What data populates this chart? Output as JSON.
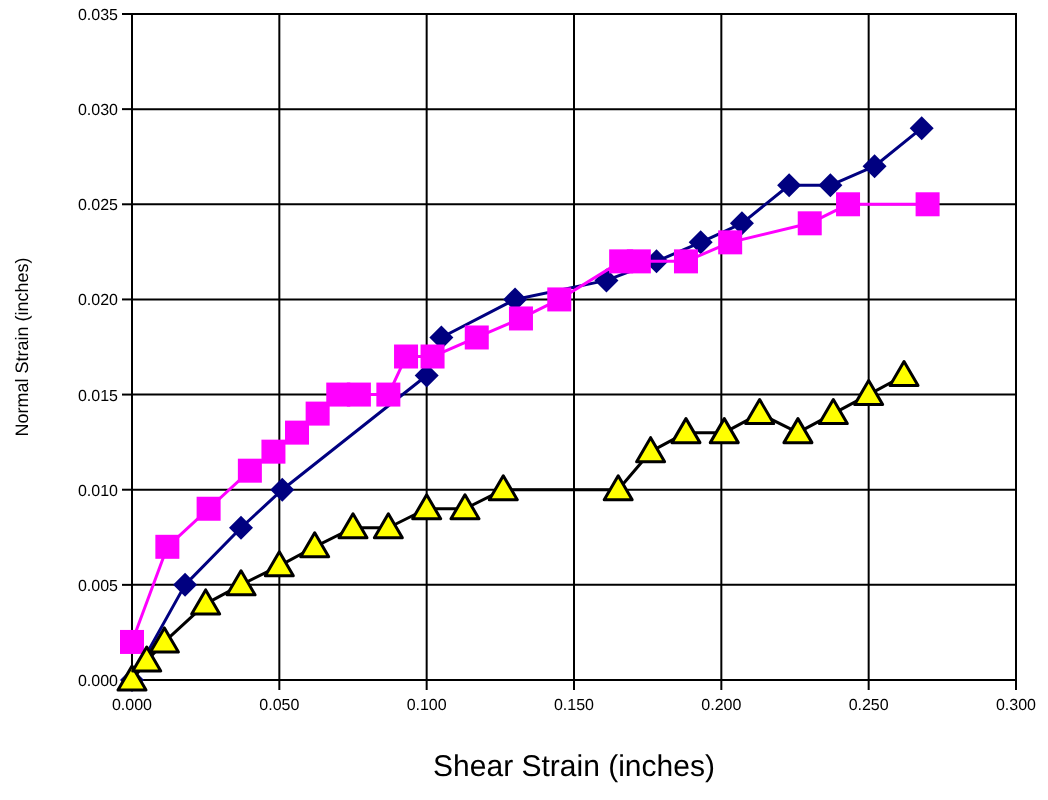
{
  "chart_data": {
    "type": "line",
    "xlabel": "Shear Strain (inches)",
    "ylabel": "Normal Strain (inches)",
    "xlim": [
      0,
      0.3
    ],
    "ylim": [
      0,
      0.035
    ],
    "xticks": [
      {
        "value": 0,
        "label": "0.000"
      },
      {
        "value": 0.05,
        "label": "0.050"
      },
      {
        "value": 0.1,
        "label": "0.100"
      },
      {
        "value": 0.15,
        "label": "0.150"
      },
      {
        "value": 0.2,
        "label": "0.200"
      },
      {
        "value": 0.25,
        "label": "0.250"
      },
      {
        "value": 0.3,
        "label": "0.300"
      }
    ],
    "yticks": [
      {
        "value": 0,
        "label": "0.000"
      },
      {
        "value": 0.005,
        "label": "0.005"
      },
      {
        "value": 0.01,
        "label": "0.010"
      },
      {
        "value": 0.015,
        "label": "0.015"
      },
      {
        "value": 0.02,
        "label": "0.020"
      },
      {
        "value": 0.025,
        "label": "0.025"
      },
      {
        "value": 0.03,
        "label": "0.030"
      },
      {
        "value": 0.035,
        "label": "0.035"
      }
    ],
    "grid": true,
    "series": [
      {
        "color": "#000080",
        "marker": "diamond",
        "x": [
          0,
          0.018,
          0.037,
          0.051,
          0.1,
          0.105,
          0.13,
          0.161,
          0.178,
          0.193,
          0.207,
          0.223,
          0.237,
          0.252,
          0.268
        ],
        "values": [
          0,
          0.005,
          0.008,
          0.01,
          0.016,
          0.018,
          0.02,
          0.021,
          0.022,
          0.023,
          0.024,
          0.026,
          0.026,
          0.027,
          0.029
        ]
      },
      {
        "color": "#ff00ff",
        "marker": "square",
        "x": [
          0,
          0.012,
          0.026,
          0.04,
          0.048,
          0.056,
          0.063,
          0.07,
          0.077,
          0.087,
          0.093,
          0.102,
          0.117,
          0.132,
          0.145,
          0.166,
          0.172,
          0.188,
          0.203,
          0.23,
          0.243,
          0.27
        ],
        "values": [
          0.002,
          0.007,
          0.009,
          0.011,
          0.012,
          0.013,
          0.014,
          0.015,
          0.015,
          0.015,
          0.017,
          0.017,
          0.018,
          0.019,
          0.02,
          0.022,
          0.022,
          0.022,
          0.023,
          0.024,
          0.025,
          0.025
        ]
      },
      {
        "color": "#ffff00",
        "marker": "triangle",
        "x": [
          0,
          0.005,
          0.011,
          0.025,
          0.037,
          0.05,
          0.062,
          0.075,
          0.087,
          0.1,
          0.113,
          0.126,
          0.165,
          0.176,
          0.188,
          0.201,
          0.213,
          0.226,
          0.238,
          0.25,
          0.262
        ],
        "values": [
          0,
          0.001,
          0.002,
          0.004,
          0.005,
          0.006,
          0.007,
          0.008,
          0.008,
          0.009,
          0.009,
          0.01,
          0.01,
          0.012,
          0.013,
          0.013,
          0.014,
          0.013,
          0.014,
          0.015,
          0.016
        ]
      }
    ]
  }
}
